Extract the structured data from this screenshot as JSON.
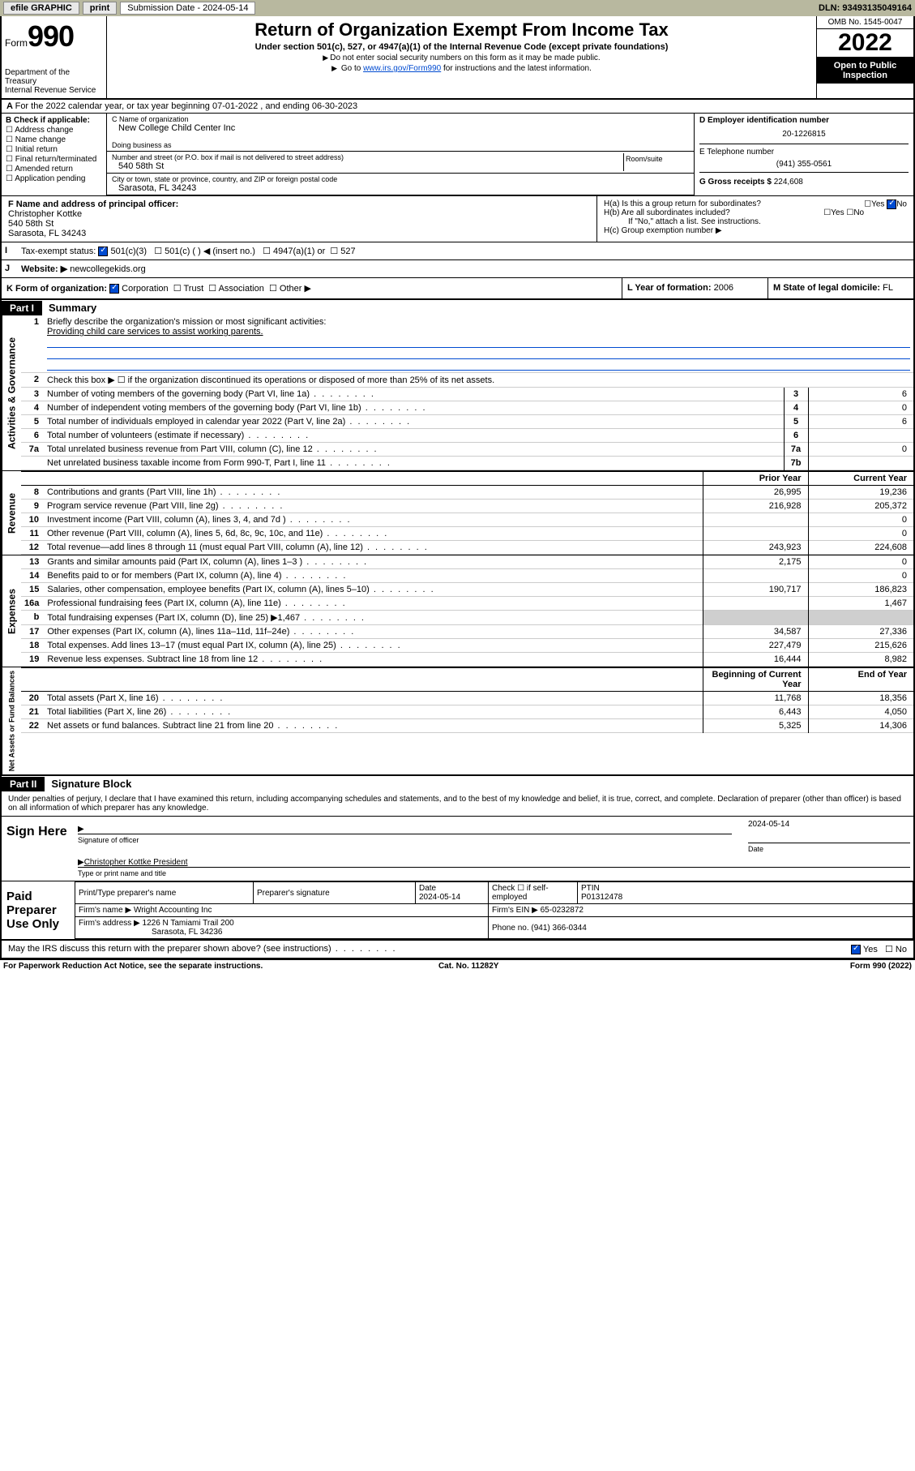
{
  "topbar": {
    "efile": "efile GRAPHIC",
    "print": "print",
    "subdate_label": "Submission Date - 2024-05-14",
    "dln": "DLN: 93493135049164"
  },
  "header": {
    "form_label": "Form",
    "form_num": "990",
    "title": "Return of Organization Exempt From Income Tax",
    "subtitle": "Under section 501(c), 527, or 4947(a)(1) of the Internal Revenue Code (except private foundations)",
    "note1": "Do not enter social security numbers on this form as it may be made public.",
    "note2_pre": "Go to ",
    "note2_link": "www.irs.gov/Form990",
    "note2_post": " for instructions and the latest information.",
    "dept": "Department of the Treasury\nInternal Revenue Service",
    "omb": "OMB No. 1545-0047",
    "year": "2022",
    "open": "Open to Public Inspection"
  },
  "period": {
    "line": "For the 2022 calendar year, or tax year beginning 07-01-2022    , and ending 06-30-2023"
  },
  "section_b": {
    "label": "B Check if applicable:",
    "items": [
      "Address change",
      "Name change",
      "Initial return",
      "Final return/terminated",
      "Amended return",
      "Application pending"
    ]
  },
  "section_c": {
    "name_label": "C Name of organization",
    "name": "New College Child Center Inc",
    "dba_label": "Doing business as",
    "addr_label": "Number and street (or P.O. box if mail is not delivered to street address)",
    "room_label": "Room/suite",
    "addr": "540 58th St",
    "city_label": "City or town, state or province, country, and ZIP or foreign postal code",
    "city": "Sarasota, FL  34243"
  },
  "section_d": {
    "ein_label": "D Employer identification number",
    "ein": "20-1226815",
    "phone_label": "E Telephone number",
    "phone": "(941) 355-0561",
    "gross_label": "G Gross receipts $",
    "gross": "224,608"
  },
  "section_f": {
    "label": "F  Name and address of principal officer:",
    "name": "Christopher Kottke",
    "addr": "540 58th St",
    "city": "Sarasota, FL  34243"
  },
  "section_h": {
    "a": "H(a)  Is this a group return for subordinates?",
    "b": "H(b)  Are all subordinates included?",
    "b_note": "If \"No,\" attach a list. See instructions.",
    "c": "H(c)  Group exemption number ▶",
    "yes": "Yes",
    "no": "No"
  },
  "section_i": {
    "label": "Tax-exempt status:",
    "opts": [
      "501(c)(3)",
      "501(c) (  ) ◀ (insert no.)",
      "4947(a)(1) or",
      "527"
    ]
  },
  "section_j": {
    "label": "Website: ▶",
    "val": "newcollegekids.org"
  },
  "section_k": {
    "label": "K Form of organization:",
    "opts": [
      "Corporation",
      "Trust",
      "Association",
      "Other ▶"
    ]
  },
  "section_l": {
    "label": "L Year of formation:",
    "val": "2006"
  },
  "section_m": {
    "label": "M State of legal domicile:",
    "val": "FL"
  },
  "part1": {
    "hdr": "Part I",
    "title": "Summary",
    "line1_label": "Briefly describe the organization's mission or most significant activities:",
    "line1_val": "Providing child care services to assist working parents.",
    "line2": "Check this box ▶ ☐  if the organization discontinued its operations or disposed of more than 25% of its net assets.",
    "rows_gov": [
      {
        "n": "3",
        "d": "Number of voting members of the governing body (Part VI, line 1a)",
        "b": "3",
        "v": "6"
      },
      {
        "n": "4",
        "d": "Number of independent voting members of the governing body (Part VI, line 1b)",
        "b": "4",
        "v": "0"
      },
      {
        "n": "5",
        "d": "Total number of individuals employed in calendar year 2022 (Part V, line 2a)",
        "b": "5",
        "v": "6"
      },
      {
        "n": "6",
        "d": "Total number of volunteers (estimate if necessary)",
        "b": "6",
        "v": ""
      },
      {
        "n": "7a",
        "d": "Total unrelated business revenue from Part VIII, column (C), line 12",
        "b": "7a",
        "v": "0"
      },
      {
        "n": "",
        "d": "Net unrelated business taxable income from Form 990-T, Part I, line 11",
        "b": "7b",
        "v": ""
      }
    ],
    "col_prior": "Prior Year",
    "col_current": "Current Year",
    "rows_rev": [
      {
        "n": "8",
        "d": "Contributions and grants (Part VIII, line 1h)",
        "p": "26,995",
        "c": "19,236"
      },
      {
        "n": "9",
        "d": "Program service revenue (Part VIII, line 2g)",
        "p": "216,928",
        "c": "205,372"
      },
      {
        "n": "10",
        "d": "Investment income (Part VIII, column (A), lines 3, 4, and 7d )",
        "p": "",
        "c": "0"
      },
      {
        "n": "11",
        "d": "Other revenue (Part VIII, column (A), lines 5, 6d, 8c, 9c, 10c, and 11e)",
        "p": "",
        "c": "0"
      },
      {
        "n": "12",
        "d": "Total revenue—add lines 8 through 11 (must equal Part VIII, column (A), line 12)",
        "p": "243,923",
        "c": "224,608"
      }
    ],
    "rows_exp": [
      {
        "n": "13",
        "d": "Grants and similar amounts paid (Part IX, column (A), lines 1–3 )",
        "p": "2,175",
        "c": "0"
      },
      {
        "n": "14",
        "d": "Benefits paid to or for members (Part IX, column (A), line 4)",
        "p": "",
        "c": "0"
      },
      {
        "n": "15",
        "d": "Salaries, other compensation, employee benefits (Part IX, column (A), lines 5–10)",
        "p": "190,717",
        "c": "186,823"
      },
      {
        "n": "16a",
        "d": "Professional fundraising fees (Part IX, column (A), line 11e)",
        "p": "",
        "c": "1,467"
      },
      {
        "n": "b",
        "d": "Total fundraising expenses (Part IX, column (D), line 25) ▶1,467",
        "p": "",
        "c": "",
        "gray": true
      },
      {
        "n": "17",
        "d": "Other expenses (Part IX, column (A), lines 11a–11d, 11f–24e)",
        "p": "34,587",
        "c": "27,336"
      },
      {
        "n": "18",
        "d": "Total expenses. Add lines 13–17 (must equal Part IX, column (A), line 25)",
        "p": "227,479",
        "c": "215,626"
      },
      {
        "n": "19",
        "d": "Revenue less expenses. Subtract line 18 from line 12",
        "p": "16,444",
        "c": "8,982"
      }
    ],
    "col_begin": "Beginning of Current Year",
    "col_end": "End of Year",
    "rows_net": [
      {
        "n": "20",
        "d": "Total assets (Part X, line 16)",
        "p": "11,768",
        "c": "18,356"
      },
      {
        "n": "21",
        "d": "Total liabilities (Part X, line 26)",
        "p": "6,443",
        "c": "4,050"
      },
      {
        "n": "22",
        "d": "Net assets or fund balances. Subtract line 21 from line 20",
        "p": "5,325",
        "c": "14,306"
      }
    ],
    "side_gov": "Activities & Governance",
    "side_rev": "Revenue",
    "side_exp": "Expenses",
    "side_net": "Net Assets or Fund Balances"
  },
  "part2": {
    "hdr": "Part II",
    "title": "Signature Block",
    "decl": "Under penalties of perjury, I declare that I have examined this return, including accompanying schedules and statements, and to the best of my knowledge and belief, it is true, correct, and complete. Declaration of preparer (other than officer) is based on all information of which preparer has any knowledge.",
    "sign_here": "Sign Here",
    "sig_officer": "Signature of officer",
    "sig_date": "Date",
    "sig_date_val": "2024-05-14",
    "officer_name": "Christopher Kottke  President",
    "type_name": "Type or print name and title",
    "paid": "Paid Preparer Use Only",
    "prep_name_label": "Print/Type preparer's name",
    "prep_sig_label": "Preparer's signature",
    "prep_date_label": "Date",
    "prep_date": "2024-05-14",
    "check_label": "Check ☐ if self-employed",
    "ptin_label": "PTIN",
    "ptin": "P01312478",
    "firm_name_label": "Firm's name    ▶",
    "firm_name": "Wright Accounting Inc",
    "firm_ein_label": "Firm's EIN ▶",
    "firm_ein": "65-0232872",
    "firm_addr_label": "Firm's address ▶",
    "firm_addr": "1226 N Tamiami Trail 200",
    "firm_city": "Sarasota, FL  34236",
    "firm_phone_label": "Phone no.",
    "firm_phone": "(941) 366-0344",
    "discuss": "May the IRS discuss this return with the preparer shown above? (see instructions)"
  },
  "footer": {
    "left": "For Paperwork Reduction Act Notice, see the separate instructions.",
    "mid": "Cat. No. 11282Y",
    "right": "Form 990 (2022)"
  }
}
